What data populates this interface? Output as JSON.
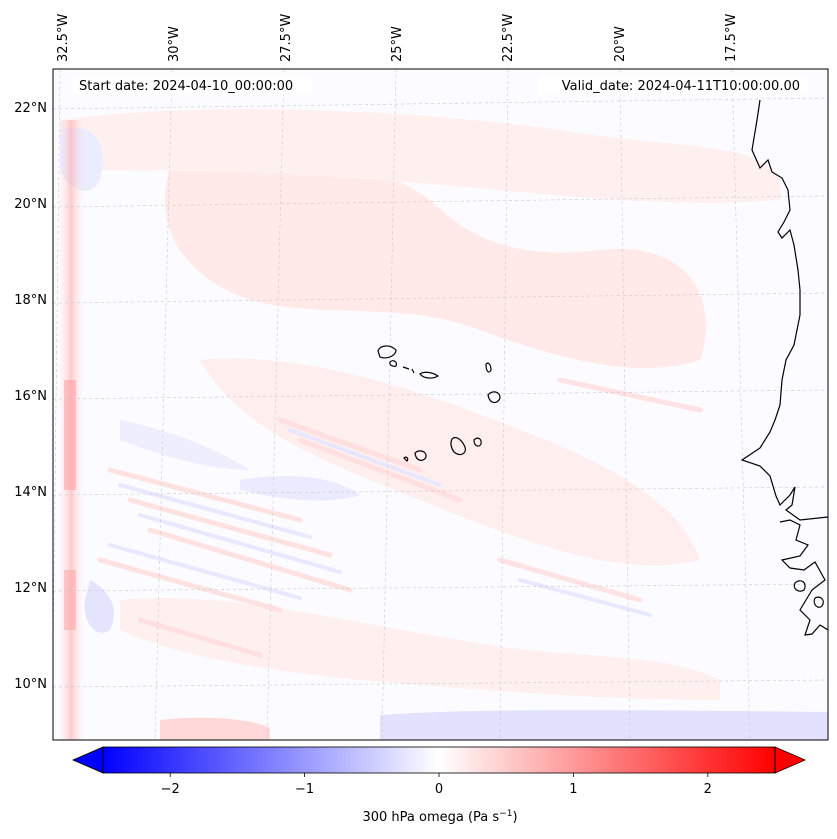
{
  "map": {
    "start_date_text": "Start date: 2024-04-10_00:00:00",
    "valid_date_text": "Valid_date: 2024-04-11T10:00:00.00",
    "lon_labels": [
      "32.5°W",
      "30°W",
      "27.5°W",
      "25°W",
      "22.5°W",
      "20°W",
      "17.5°W"
    ],
    "lat_labels": [
      "22°N",
      "20°N",
      "18°N",
      "16°N",
      "14°N",
      "12°N",
      "10°N"
    ],
    "field_colors": {
      "ocean_base": "#fcfbff",
      "positive": "#ffe4e4",
      "positive_strong": "#ff9a9a",
      "negative": "#eeeeff",
      "coastline": "#000000"
    }
  },
  "colorbar": {
    "label": "300 hPa omega (Pa s",
    "label_exponent": "−1",
    "label_close": ")",
    "tick_labels": [
      "−2",
      "−1",
      "0",
      "1",
      "2"
    ],
    "tick_values": [
      -2,
      -1,
      0,
      1,
      2
    ],
    "range": [
      -2.5,
      2.5
    ],
    "cmap": "bwr",
    "extend": "both",
    "color_min": "#0000ff",
    "color_mid": "#ffffff",
    "color_max": "#ff0000"
  }
}
